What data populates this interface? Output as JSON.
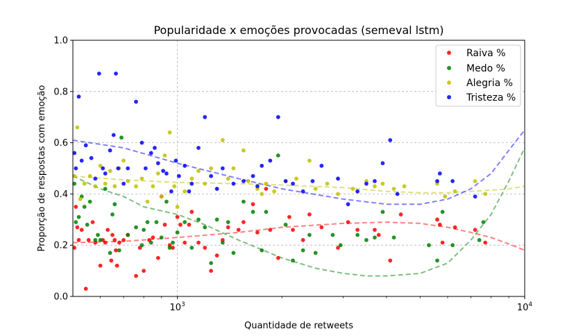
{
  "chart_data": {
    "type": "scatter",
    "title": "Popularidade x emoções provocadas (semeval lstm)",
    "xlabel": "Quantidade de retweets",
    "ylabel": "Proporção de respostas com emoção",
    "xscale": "log",
    "xlim": [
      500,
      10000
    ],
    "ylim": [
      0.0,
      1.0
    ],
    "grid": true,
    "legend_position": "top-right",
    "x_ticks": [
      {
        "value": 1000,
        "base": "10",
        "exp": "3"
      },
      {
        "value": 10000,
        "base": "10",
        "exp": "4"
      }
    ],
    "y_ticks": [
      "0.0",
      "0.2",
      "0.4",
      "0.6",
      "0.8",
      "1.0"
    ],
    "series": [
      {
        "name": "Raiva %",
        "color": "#ff0000",
        "points": [
          [
            505,
            0.19
          ],
          [
            510,
            0.35
          ],
          [
            515,
            0.27
          ],
          [
            520,
            0.22
          ],
          [
            530,
            0.26
          ],
          [
            545,
            0.03
          ],
          [
            555,
            0.22
          ],
          [
            570,
            0.29
          ],
          [
            580,
            0.21
          ],
          [
            600,
            0.12
          ],
          [
            610,
            0.22
          ],
          [
            620,
            0.21
          ],
          [
            630,
            0.26
          ],
          [
            645,
            0.14
          ],
          [
            650,
            0.24
          ],
          [
            660,
            0.22
          ],
          [
            665,
            0.18
          ],
          [
            670,
            0.12
          ],
          [
            680,
            0.21
          ],
          [
            700,
            0.22
          ],
          [
            720,
            0.24
          ],
          [
            760,
            0.08
          ],
          [
            780,
            0.19
          ],
          [
            800,
            0.1
          ],
          [
            830,
            0.22
          ],
          [
            850,
            0.23
          ],
          [
            880,
            0.15
          ],
          [
            900,
            0.39
          ],
          [
            920,
            0.28
          ],
          [
            950,
            0.2
          ],
          [
            970,
            0.19
          ],
          [
            1000,
            0.31
          ],
          [
            1020,
            0.28
          ],
          [
            1050,
            0.21
          ],
          [
            1080,
            0.28
          ],
          [
            1100,
            0.33
          ],
          [
            1150,
            0.21
          ],
          [
            1200,
            0.19
          ],
          [
            1250,
            0.1
          ],
          [
            1300,
            0.16
          ],
          [
            1350,
            0.22
          ],
          [
            1400,
            0.27
          ],
          [
            1500,
            0.26
          ],
          [
            1550,
            0.29
          ],
          [
            1650,
            0.36
          ],
          [
            1700,
            0.25
          ],
          [
            1800,
            0.42
          ],
          [
            1850,
            0.26
          ],
          [
            1950,
            0.15
          ],
          [
            2100,
            0.31
          ],
          [
            2150,
            0.26
          ],
          [
            2300,
            0.22
          ],
          [
            2400,
            0.32
          ],
          [
            2600,
            0.27
          ],
          [
            2900,
            0.19
          ],
          [
            3100,
            0.29
          ],
          [
            3300,
            0.26
          ],
          [
            3700,
            0.26
          ],
          [
            3800,
            0.24
          ],
          [
            4100,
            0.14
          ],
          [
            4400,
            0.32
          ],
          [
            5600,
            0.3
          ],
          [
            5700,
            0.28
          ],
          [
            5800,
            0.21
          ],
          [
            6300,
            0.27
          ],
          [
            7200,
            0.26
          ],
          [
            7700,
            0.21
          ]
        ]
      },
      {
        "name": "Medo %",
        "color": "#008000",
        "points": [
          [
            505,
            0.44
          ],
          [
            510,
            0.29
          ],
          [
            520,
            0.31
          ],
          [
            530,
            0.39
          ],
          [
            540,
            0.35
          ],
          [
            550,
            0.28
          ],
          [
            560,
            0.37
          ],
          [
            580,
            0.22
          ],
          [
            590,
            0.24
          ],
          [
            600,
            0.22
          ],
          [
            620,
            0.42
          ],
          [
            640,
            0.17
          ],
          [
            650,
            0.32
          ],
          [
            660,
            0.36
          ],
          [
            680,
            0.18
          ],
          [
            690,
            0.62
          ],
          [
            720,
            0.24
          ],
          [
            760,
            0.27
          ],
          [
            790,
            0.2
          ],
          [
            800,
            0.26
          ],
          [
            820,
            0.29
          ],
          [
            840,
            0.21
          ],
          [
            870,
            0.29
          ],
          [
            900,
            0.23
          ],
          [
            930,
            0.37
          ],
          [
            950,
            0.19
          ],
          [
            970,
            0.21
          ],
          [
            1000,
            0.25
          ],
          [
            1050,
            0.29
          ],
          [
            1100,
            0.19
          ],
          [
            1150,
            0.3
          ],
          [
            1200,
            0.27
          ],
          [
            1250,
            0.13
          ],
          [
            1300,
            0.3
          ],
          [
            1350,
            0.21
          ],
          [
            1400,
            0.29
          ],
          [
            1450,
            0.17
          ],
          [
            1550,
            0.37
          ],
          [
            1650,
            0.33
          ],
          [
            1750,
            0.18
          ],
          [
            1800,
            0.33
          ],
          [
            1950,
            0.55
          ],
          [
            2050,
            0.28
          ],
          [
            2150,
            0.14
          ],
          [
            2300,
            0.18
          ],
          [
            2400,
            0.24
          ],
          [
            2500,
            0.17
          ],
          [
            2800,
            0.24
          ],
          [
            2950,
            0.2
          ],
          [
            3300,
            0.24
          ],
          [
            3500,
            0.22
          ],
          [
            3700,
            0.23
          ],
          [
            3900,
            0.33
          ],
          [
            4200,
            0.23
          ],
          [
            5300,
            0.2
          ],
          [
            5600,
            0.14
          ],
          [
            5800,
            0.33
          ],
          [
            6200,
            0.2
          ],
          [
            7400,
            0.22
          ],
          [
            7600,
            0.29
          ]
        ]
      },
      {
        "name": "Alegria %",
        "color": "#bfbf00",
        "points": [
          [
            505,
            0.47
          ],
          [
            515,
            0.66
          ],
          [
            525,
            0.38
          ],
          [
            540,
            0.44
          ],
          [
            560,
            0.47
          ],
          [
            580,
            0.43
          ],
          [
            600,
            0.51
          ],
          [
            620,
            0.44
          ],
          [
            640,
            0.49
          ],
          [
            660,
            0.43
          ],
          [
            680,
            0.5
          ],
          [
            700,
            0.53
          ],
          [
            720,
            0.45
          ],
          [
            760,
            0.43
          ],
          [
            790,
            0.46
          ],
          [
            820,
            0.37
          ],
          [
            850,
            0.43
          ],
          [
            880,
            0.48
          ],
          [
            900,
            0.39
          ],
          [
            920,
            0.55
          ],
          [
            950,
            0.64
          ],
          [
            980,
            0.43
          ],
          [
            1000,
            0.35
          ],
          [
            1050,
            0.41
          ],
          [
            1100,
            0.46
          ],
          [
            1150,
            0.49
          ],
          [
            1200,
            0.44
          ],
          [
            1250,
            0.5
          ],
          [
            1300,
            0.42
          ],
          [
            1350,
            0.61
          ],
          [
            1400,
            0.46
          ],
          [
            1450,
            0.5
          ],
          [
            1550,
            0.57
          ],
          [
            1600,
            0.45
          ],
          [
            1700,
            0.42
          ],
          [
            1750,
            0.4
          ],
          [
            1800,
            0.44
          ],
          [
            1900,
            0.41
          ],
          [
            2050,
            0.45
          ],
          [
            2200,
            0.46
          ],
          [
            2400,
            0.53
          ],
          [
            2500,
            0.42
          ],
          [
            2700,
            0.44
          ],
          [
            2900,
            0.4
          ],
          [
            3200,
            0.42
          ],
          [
            3500,
            0.45
          ],
          [
            3700,
            0.43
          ],
          [
            3900,
            0.44
          ],
          [
            4200,
            0.42
          ],
          [
            4500,
            0.43
          ],
          [
            5600,
            0.44
          ],
          [
            5900,
            0.39
          ],
          [
            6300,
            0.41
          ],
          [
            7200,
            0.45
          ],
          [
            7700,
            0.4
          ]
        ]
      },
      {
        "name": "Tristeza %",
        "color": "#0000ff",
        "points": [
          [
            505,
            0.56
          ],
          [
            510,
            0.5
          ],
          [
            520,
            0.78
          ],
          [
            530,
            0.53
          ],
          [
            545,
            0.59
          ],
          [
            565,
            0.54
          ],
          [
            580,
            0.46
          ],
          [
            595,
            0.87
          ],
          [
            610,
            0.5
          ],
          [
            620,
            0.48
          ],
          [
            640,
            0.57
          ],
          [
            655,
            0.63
          ],
          [
            665,
            0.87
          ],
          [
            675,
            0.5
          ],
          [
            700,
            0.44
          ],
          [
            720,
            0.5
          ],
          [
            760,
            0.76
          ],
          [
            790,
            0.6
          ],
          [
            810,
            0.5
          ],
          [
            840,
            0.56
          ],
          [
            860,
            0.58
          ],
          [
            880,
            0.52
          ],
          [
            910,
            0.49
          ],
          [
            930,
            0.48
          ],
          [
            960,
            0.41
          ],
          [
            990,
            0.53
          ],
          [
            1010,
            0.47
          ],
          [
            1050,
            0.51
          ],
          [
            1080,
            0.41
          ],
          [
            1100,
            0.44
          ],
          [
            1150,
            0.58
          ],
          [
            1200,
            0.7
          ],
          [
            1250,
            0.47
          ],
          [
            1300,
            0.42
          ],
          [
            1350,
            0.5
          ],
          [
            1450,
            0.44
          ],
          [
            1550,
            0.45
          ],
          [
            1650,
            0.47
          ],
          [
            1700,
            0.43
          ],
          [
            1750,
            0.51
          ],
          [
            1850,
            0.53
          ],
          [
            1950,
            0.7
          ],
          [
            2050,
            0.45
          ],
          [
            2150,
            0.44
          ],
          [
            2300,
            0.41
          ],
          [
            2450,
            0.45
          ],
          [
            2600,
            0.51
          ],
          [
            2900,
            0.46
          ],
          [
            3100,
            0.36
          ],
          [
            3300,
            0.41
          ],
          [
            3500,
            0.44
          ],
          [
            3700,
            0.45
          ],
          [
            3900,
            0.52
          ],
          [
            4100,
            0.61
          ],
          [
            4300,
            0.4
          ],
          [
            5600,
            0.45
          ],
          [
            5700,
            0.48
          ],
          [
            6200,
            0.45
          ],
          [
            7200,
            0.39
          ]
        ]
      }
    ],
    "trend_lines": [
      {
        "name": "Raiva %",
        "color": "#ff0000",
        "points": [
          [
            500,
            0.21
          ],
          [
            700,
            0.215
          ],
          [
            1000,
            0.23
          ],
          [
            1500,
            0.25
          ],
          [
            2000,
            0.27
          ],
          [
            3000,
            0.285
          ],
          [
            4000,
            0.29
          ],
          [
            5000,
            0.285
          ],
          [
            6000,
            0.27
          ],
          [
            7000,
            0.25
          ],
          [
            8000,
            0.23
          ],
          [
            9000,
            0.205
          ],
          [
            10000,
            0.18
          ]
        ]
      },
      {
        "name": "Medo %",
        "color": "#008000",
        "points": [
          [
            500,
            0.47
          ],
          [
            600,
            0.42
          ],
          [
            700,
            0.39
          ],
          [
            800,
            0.35
          ],
          [
            1000,
            0.32
          ],
          [
            1200,
            0.28
          ],
          [
            1500,
            0.22
          ],
          [
            2000,
            0.15
          ],
          [
            2500,
            0.11
          ],
          [
            3000,
            0.09
          ],
          [
            3500,
            0.08
          ],
          [
            4000,
            0.08
          ],
          [
            5000,
            0.09
          ],
          [
            6000,
            0.13
          ],
          [
            7000,
            0.22
          ],
          [
            8000,
            0.32
          ],
          [
            9000,
            0.45
          ],
          [
            10000,
            0.58
          ]
        ]
      },
      {
        "name": "Alegria %",
        "color": "#bfbf00",
        "points": [
          [
            500,
            0.47
          ],
          [
            700,
            0.455
          ],
          [
            1000,
            0.445
          ],
          [
            1500,
            0.44
          ],
          [
            2000,
            0.435
          ],
          [
            3000,
            0.425
          ],
          [
            4000,
            0.41
          ],
          [
            5000,
            0.405
          ],
          [
            6000,
            0.405
          ],
          [
            7000,
            0.41
          ],
          [
            8000,
            0.415
          ],
          [
            9000,
            0.42
          ],
          [
            10000,
            0.43
          ]
        ]
      },
      {
        "name": "Tristeza %",
        "color": "#0000ff",
        "points": [
          [
            500,
            0.61
          ],
          [
            700,
            0.58
          ],
          [
            1000,
            0.52
          ],
          [
            1500,
            0.46
          ],
          [
            2000,
            0.42
          ],
          [
            3000,
            0.38
          ],
          [
            4000,
            0.36
          ],
          [
            5000,
            0.36
          ],
          [
            6000,
            0.38
          ],
          [
            7000,
            0.42
          ],
          [
            8000,
            0.48
          ],
          [
            9000,
            0.57
          ],
          [
            10000,
            0.65
          ]
        ]
      }
    ]
  }
}
